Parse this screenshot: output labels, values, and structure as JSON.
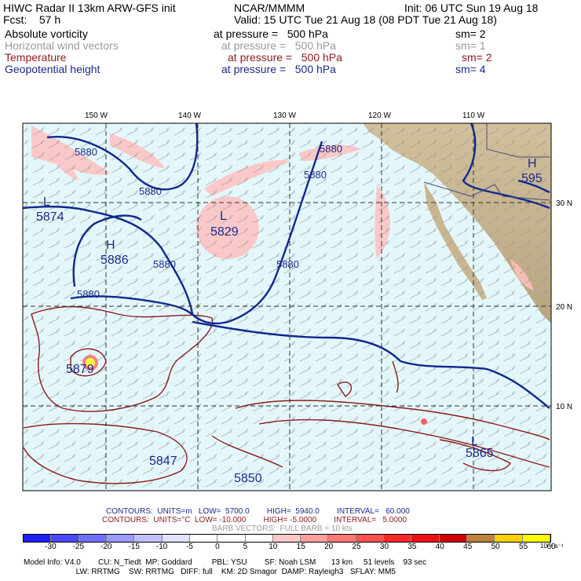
{
  "header": {
    "title": "HIWC Radar II 13km ARW-GFS init",
    "org": "NCAR/MMMM",
    "init": "Init: 06 UTC Sun 19 Aug 18",
    "fcst": "Fcst:    57 h",
    "valid": "Valid: 15 UTC Tue 21 Aug 18 (08 PDT Tue 21 Aug 18)"
  },
  "fields": [
    {
      "name": "Absolute vorticity",
      "pressure": "at pressure =   500 hPa",
      "sm": "sm= 2",
      "color": "#000000"
    },
    {
      "name": "Horizontal wind vectors",
      "pressure": "at pressure =   500 hPa",
      "sm": "sm= 1",
      "color": "#9a9a9a"
    },
    {
      "name": "Temperature",
      "pressure": "at pressure =   500 hPa",
      "sm": "sm= 2",
      "color": "#8b1a1a"
    },
    {
      "name": "Geopotential height",
      "pressure": "at pressure =   500 hPa",
      "sm": "sm= 4",
      "color": "#1a2a8a"
    }
  ],
  "map": {
    "lon_labels": [
      "150 W",
      "140 W",
      "130 W",
      "120 W",
      "110 W"
    ],
    "lat_labels": [
      "30 N",
      "20 N",
      "10 N"
    ],
    "height_labels": [
      "5880",
      "5880",
      "5880",
      "5880",
      "5880",
      "5880",
      "5880",
      "5874",
      "5886",
      "5829",
      "5879",
      "5847",
      "5850",
      "5865",
      "595"
    ],
    "pressure_centers": [
      "L",
      "H",
      "L",
      "H",
      "L"
    ]
  },
  "contours": {
    "line1": "CONTOURS:  UNITS=m   LOW=  5700.0        HIGH=  5940.0        INTERVAL=   60.000",
    "line2": "CONTOURS:  UNITS=°C  LOW= -10.000        HIGH= -5.0000        INTERVAL=   5.0000",
    "barb": "BARB VECTORS:  FULL BARB = 10 kts"
  },
  "colorbar": {
    "labels": [
      "-30",
      "-25",
      "-20",
      "-15",
      "-10",
      "-5",
      "0",
      "5",
      "10",
      "15",
      "20",
      "25",
      "30",
      "35",
      "40",
      "45",
      "50",
      "55",
      "60"
    ],
    "unit": "10⁻⁵ s⁻¹",
    "colors": [
      "#2020ff",
      "#4a4aff",
      "#7070ff",
      "#9a9aff",
      "#c0c0ff",
      "#e0e0ff",
      "#ffffff",
      "#ffffff",
      "#ffffff",
      "#ffc8c8",
      "#ffa0a0",
      "#ff7878",
      "#ff5050",
      "#ff2828",
      "#f01010",
      "#d00000",
      "#c08040",
      "#ffd000",
      "#ffff00"
    ]
  },
  "model_info": {
    "line1": "Model Info: V4.0        CU: N_Tiedt  MP: Goddard         PBL: YSU        SF: Noah LSM       13 km     51 levels    93 sec",
    "line2": "                        LW: RRTMG    SW: RRTMG   DIFF: full    KM: 2D Smagor  DAMP: Rayleigh3   SFLAY: MM5"
  }
}
